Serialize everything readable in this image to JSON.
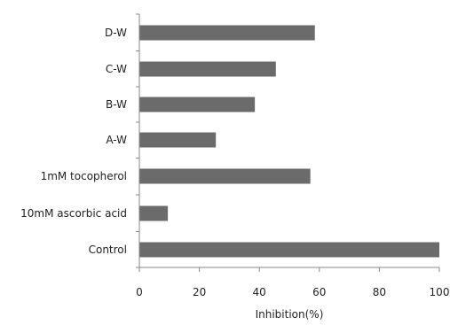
{
  "chart_data": {
    "type": "bar",
    "orientation": "horizontal",
    "categories": [
      "Control",
      "10mM ascorbic acid",
      "1mM tocopherol",
      "A-W",
      "B-W",
      "C-W",
      "D-W"
    ],
    "series": [
      {
        "values": [
          100,
          9.5,
          57,
          25.5,
          38.5,
          45.5,
          58.5
        ]
      }
    ],
    "xlabel": "Inhibition(%)",
    "ylabel": "",
    "xlim": [
      0,
      100
    ],
    "x_ticks": [
      "0",
      "20",
      "40",
      "60",
      "80",
      "100"
    ],
    "grid": false,
    "legend": "none",
    "bar_color": "#6b6b6b",
    "axis_color": "#888888"
  }
}
